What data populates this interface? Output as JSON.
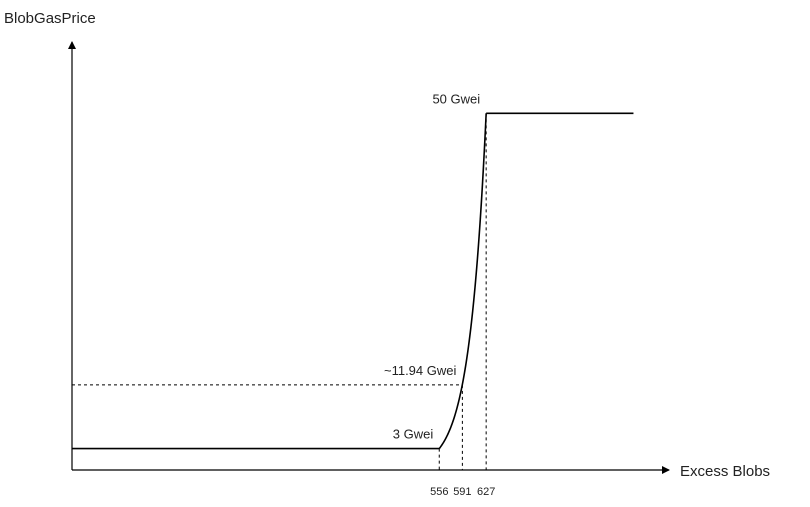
{
  "chart_data": {
    "type": "line",
    "ylabel": "BlobGasPrice",
    "xlabel": "Excess Blobs",
    "xlim": [
      0,
      925
    ],
    "ylim": [
      0,
      60
    ],
    "segments": {
      "floor": {
        "from": 0,
        "to": 556,
        "y": 3
      },
      "curve": {
        "from": 556,
        "to": 627,
        "y_start": 3,
        "y_end": 50,
        "growth": "exponential"
      },
      "cap": {
        "from": 627,
        "to": 850,
        "y": 50
      }
    },
    "markers": [
      {
        "x": 556,
        "x_label": "556",
        "y": 3,
        "y_label": "3 Gwei",
        "show_horizontal": false
      },
      {
        "x": 591,
        "x_label": "591",
        "y": 11.94,
        "y_label": "~11.94 Gwei",
        "show_horizontal": true
      },
      {
        "x": 627,
        "x_label": "627",
        "y": 50,
        "y_label": "50 Gwei",
        "show_horizontal": false
      }
    ],
    "grid": false,
    "legend": "none"
  }
}
